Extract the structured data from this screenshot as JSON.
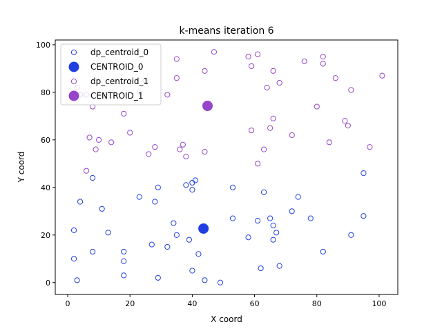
{
  "chart_data": {
    "type": "scatter",
    "title": "k-means iteration 6",
    "xlabel": "X coord",
    "ylabel": "Y coord",
    "xlim": [
      -4,
      106
    ],
    "ylim": [
      -5,
      102
    ],
    "xticks": [
      0,
      20,
      40,
      60,
      80,
      100
    ],
    "yticks": [
      0,
      20,
      40,
      60,
      80,
      100
    ],
    "grid": false,
    "legend_position": "top-left",
    "series": [
      {
        "name": "dp_centroid_0",
        "marker": "hollow-circle",
        "color": "#1f3fe0",
        "points": [
          [
            2,
            22
          ],
          [
            2,
            10
          ],
          [
            3,
            1
          ],
          [
            4,
            34
          ],
          [
            8,
            44
          ],
          [
            8,
            13
          ],
          [
            11,
            31
          ],
          [
            13,
            21
          ],
          [
            18,
            13
          ],
          [
            18,
            9
          ],
          [
            18,
            3
          ],
          [
            23,
            36
          ],
          [
            27,
            16
          ],
          [
            28,
            34
          ],
          [
            29,
            40
          ],
          [
            29,
            2
          ],
          [
            32,
            15
          ],
          [
            34,
            25
          ],
          [
            35,
            20
          ],
          [
            38,
            41
          ],
          [
            39,
            18
          ],
          [
            40,
            42
          ],
          [
            40,
            39
          ],
          [
            40,
            5
          ],
          [
            41,
            43
          ],
          [
            42,
            12
          ],
          [
            44,
            1
          ],
          [
            49,
            0
          ],
          [
            53,
            40
          ],
          [
            53,
            27
          ],
          [
            58,
            19
          ],
          [
            61,
            26
          ],
          [
            62,
            6
          ],
          [
            63,
            38
          ],
          [
            65,
            27
          ],
          [
            66,
            24
          ],
          [
            66,
            18
          ],
          [
            67,
            21
          ],
          [
            68,
            7
          ],
          [
            72,
            30
          ],
          [
            74,
            36
          ],
          [
            78,
            27
          ],
          [
            82,
            13
          ],
          [
            91,
            20
          ],
          [
            95,
            46
          ],
          [
            95,
            28
          ]
        ]
      },
      {
        "name": "CENTROID_0",
        "marker": "filled-circle",
        "color": "#1f3fe0",
        "points": [
          [
            43.6,
            22.7
          ]
        ]
      },
      {
        "name": "dp_centroid_1",
        "marker": "hollow-circle",
        "color": "#9645c8",
        "points": [
          [
            3,
            82
          ],
          [
            4,
            79
          ],
          [
            6,
            79
          ],
          [
            6,
            47
          ],
          [
            7,
            61
          ],
          [
            8,
            74
          ],
          [
            9,
            56
          ],
          [
            10,
            60
          ],
          [
            14,
            59
          ],
          [
            18,
            71
          ],
          [
            20,
            63
          ],
          [
            23,
            80
          ],
          [
            25,
            85
          ],
          [
            26,
            54
          ],
          [
            28,
            57
          ],
          [
            32,
            79
          ],
          [
            35,
            94
          ],
          [
            35,
            86
          ],
          [
            36,
            56
          ],
          [
            37,
            58
          ],
          [
            38,
            53
          ],
          [
            44,
            89
          ],
          [
            44,
            55
          ],
          [
            47,
            97
          ],
          [
            58,
            95
          ],
          [
            59,
            91
          ],
          [
            59,
            64
          ],
          [
            61,
            96
          ],
          [
            61,
            50
          ],
          [
            63,
            56
          ],
          [
            64,
            82
          ],
          [
            65,
            65
          ],
          [
            66,
            89
          ],
          [
            66,
            69
          ],
          [
            68,
            84
          ],
          [
            72,
            62
          ],
          [
            76,
            93
          ],
          [
            80,
            74
          ],
          [
            82,
            95
          ],
          [
            82,
            92
          ],
          [
            84,
            59
          ],
          [
            86,
            86
          ],
          [
            89,
            68
          ],
          [
            90,
            66
          ],
          [
            91,
            81
          ],
          [
            97,
            57
          ],
          [
            101,
            87
          ]
        ]
      },
      {
        "name": "CENTROID_1",
        "marker": "filled-circle",
        "color": "#9645c8",
        "points": [
          [
            44.9,
            74.3
          ]
        ]
      }
    ]
  }
}
